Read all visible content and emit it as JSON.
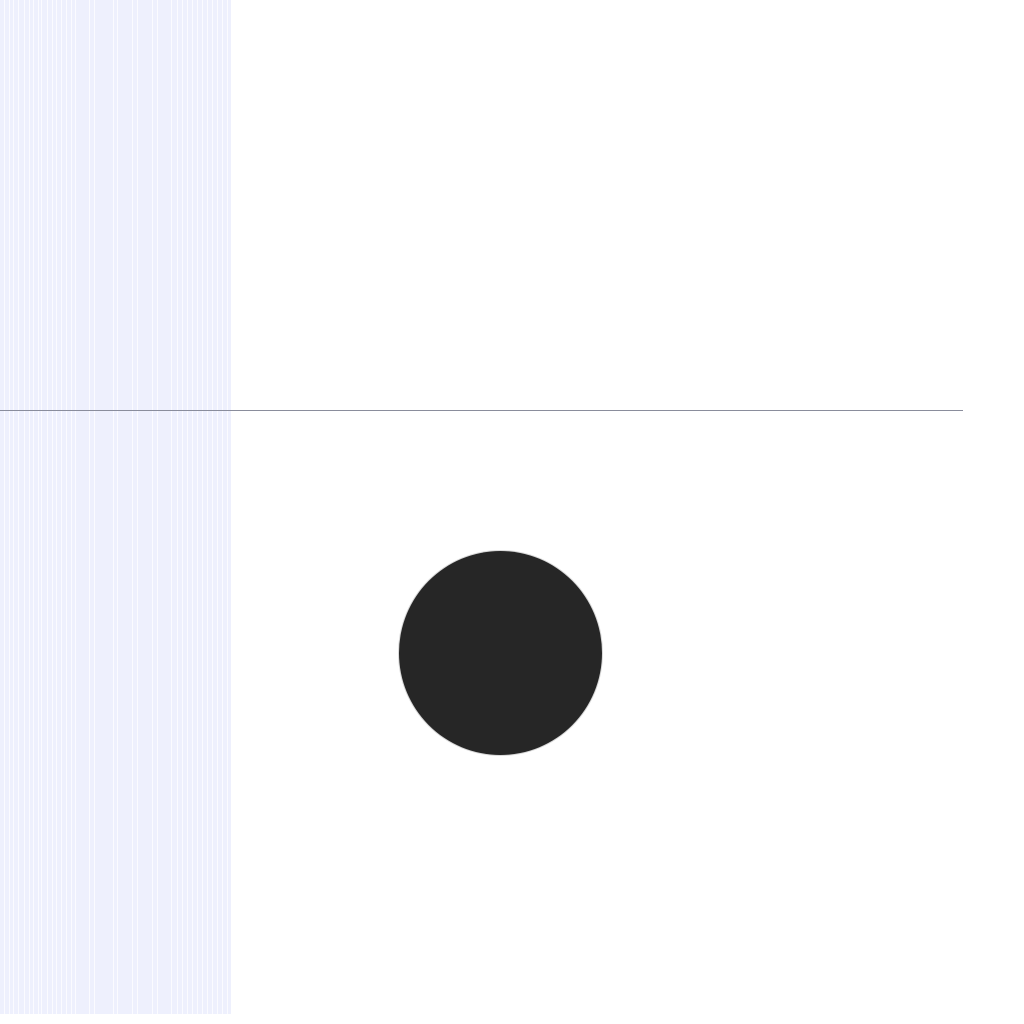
{
  "colors": {
    "background": "#ffffff",
    "stripe_panel": "#eef0fd",
    "stripe_highlight": "#fbfbff",
    "divider": "#8a8d9c",
    "circle_fill": "#262626"
  },
  "shapes": {
    "stripe_panel": "vertical-stripes",
    "divider": "horizontal-line",
    "circle": "filled-circle"
  }
}
